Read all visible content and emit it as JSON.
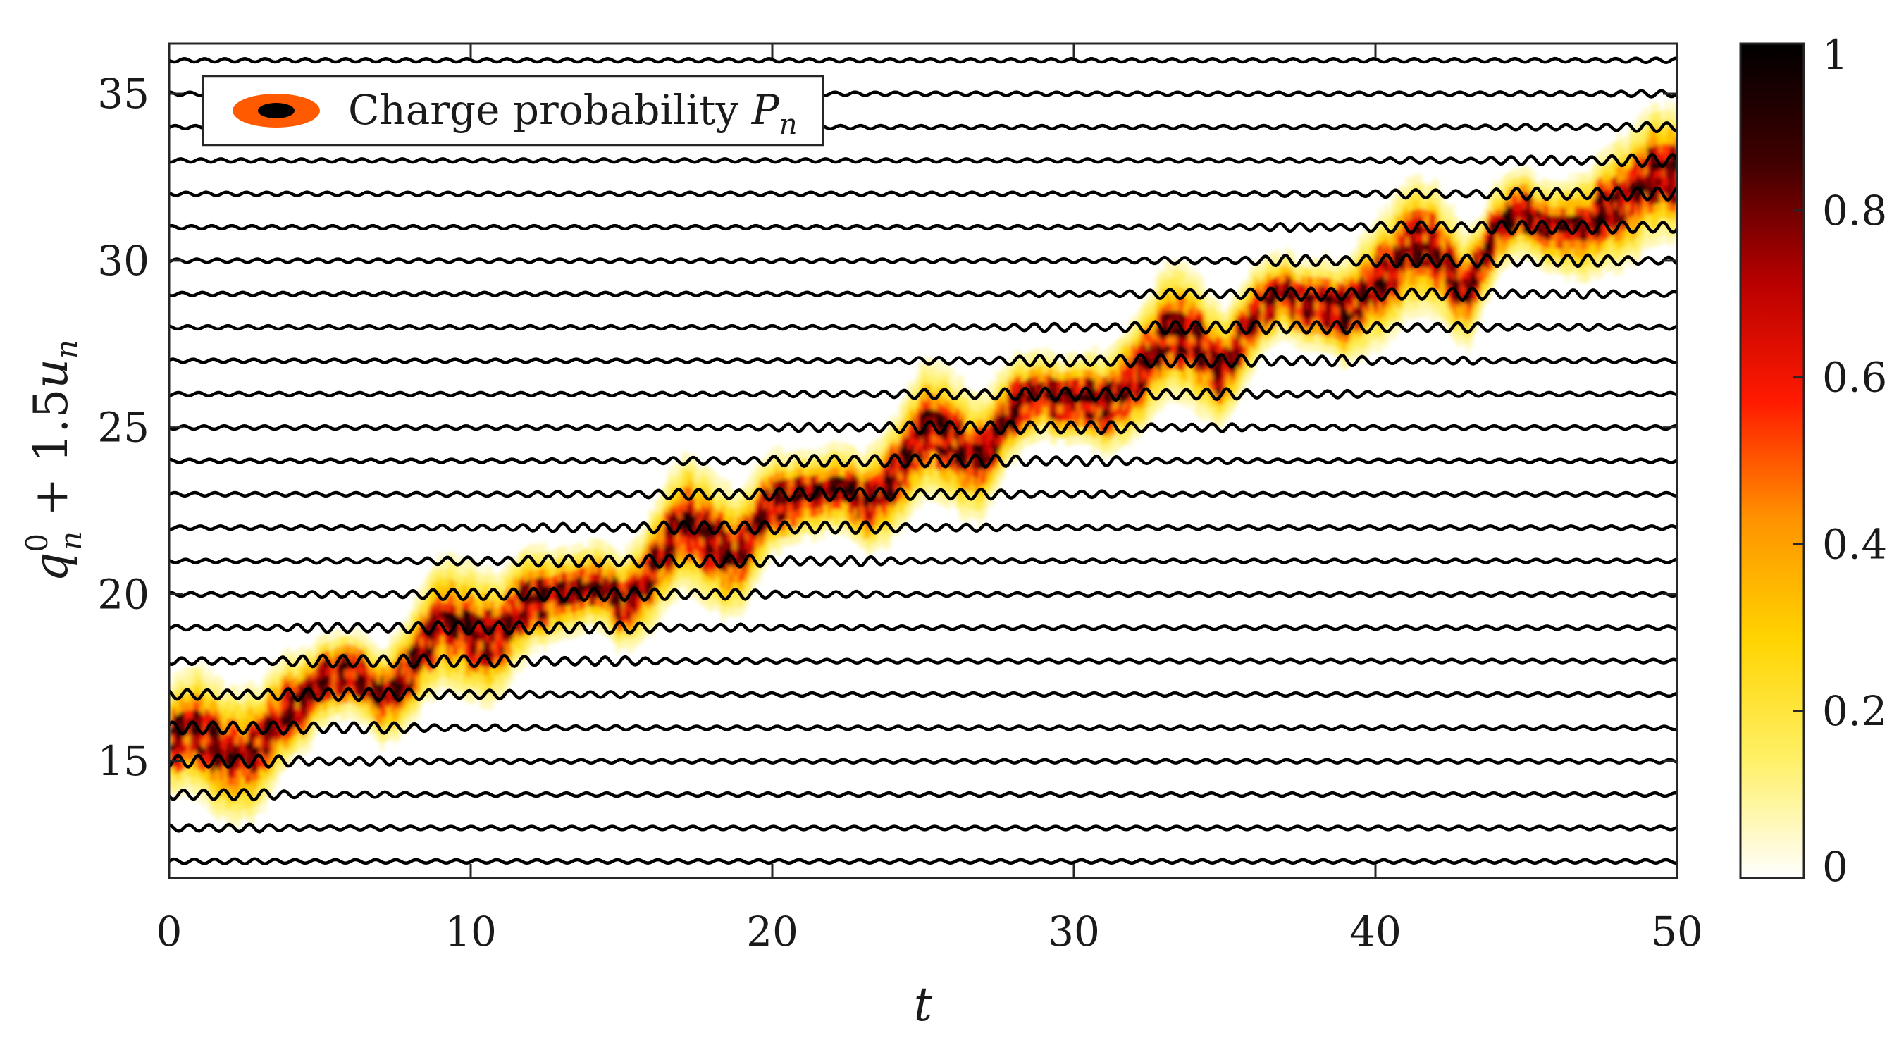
{
  "chart_data": {
    "type": "line",
    "title": "",
    "xlabel": "t",
    "ylabel": "q_n^0 + 1.5u_n",
    "xlim": [
      0,
      50
    ],
    "ylim": [
      11.5,
      36.5
    ],
    "x_ticks": [
      0,
      10,
      20,
      30,
      40,
      50
    ],
    "y_ticks": [
      15,
      20,
      25,
      30,
      35
    ],
    "grid": false,
    "legend": {
      "position": "top-left",
      "label": "Charge probability",
      "symbol": "P",
      "subscript": "n",
      "marker_colors": [
        "#ff5a00",
        "#000000"
      ]
    },
    "series": {
      "lattice_sites": [
        12,
        13,
        14,
        15,
        16,
        17,
        18,
        19,
        20,
        21,
        22,
        23,
        24,
        25,
        26,
        27,
        28,
        29,
        30,
        31,
        32,
        33,
        34,
        35,
        36
      ],
      "line_color": "#000000"
    },
    "charge_path": {
      "x": [
        0,
        1,
        2,
        3,
        4,
        5,
        6,
        7,
        8,
        9,
        10,
        11,
        12,
        13,
        14,
        15,
        16,
        17,
        18,
        19,
        20,
        21,
        22,
        23,
        24,
        25,
        26,
        27,
        28,
        29,
        30,
        31,
        32,
        33,
        34,
        35,
        36,
        37,
        38,
        39,
        40,
        41,
        42,
        43,
        44,
        45,
        46,
        47,
        48,
        49,
        50
      ],
      "y": [
        15.5,
        15.6,
        15.3,
        15.1,
        16.4,
        17.5,
        17.3,
        16.9,
        17.8,
        18.8,
        19.0,
        18.6,
        19.6,
        20.2,
        20.0,
        19.6,
        20.8,
        21.8,
        21.6,
        21.2,
        22.4,
        23.1,
        23.0,
        22.5,
        23.6,
        24.6,
        24.5,
        24.2,
        25.2,
        26.1,
        25.8,
        25.3,
        26.6,
        27.6,
        27.4,
        26.9,
        28.0,
        29.0,
        28.7,
        28.0,
        29.4,
        30.2,
        30.0,
        29.2,
        30.6,
        31.3,
        31.1,
        30.6,
        31.7,
        32.5,
        32.2
      ]
    },
    "colorbar": {
      "min": 0,
      "max": 1,
      "ticks": [
        0,
        0.2,
        0.4,
        0.6,
        0.8,
        1
      ],
      "tick_labels": [
        "0",
        "0.2",
        "0.4",
        "0.6",
        "0.8",
        "1"
      ],
      "colormap": [
        "#ffffff",
        "#fff066",
        "#ffd400",
        "#ff9400",
        "#ff1a00",
        "#b80000",
        "#400000",
        "#000000"
      ]
    }
  }
}
